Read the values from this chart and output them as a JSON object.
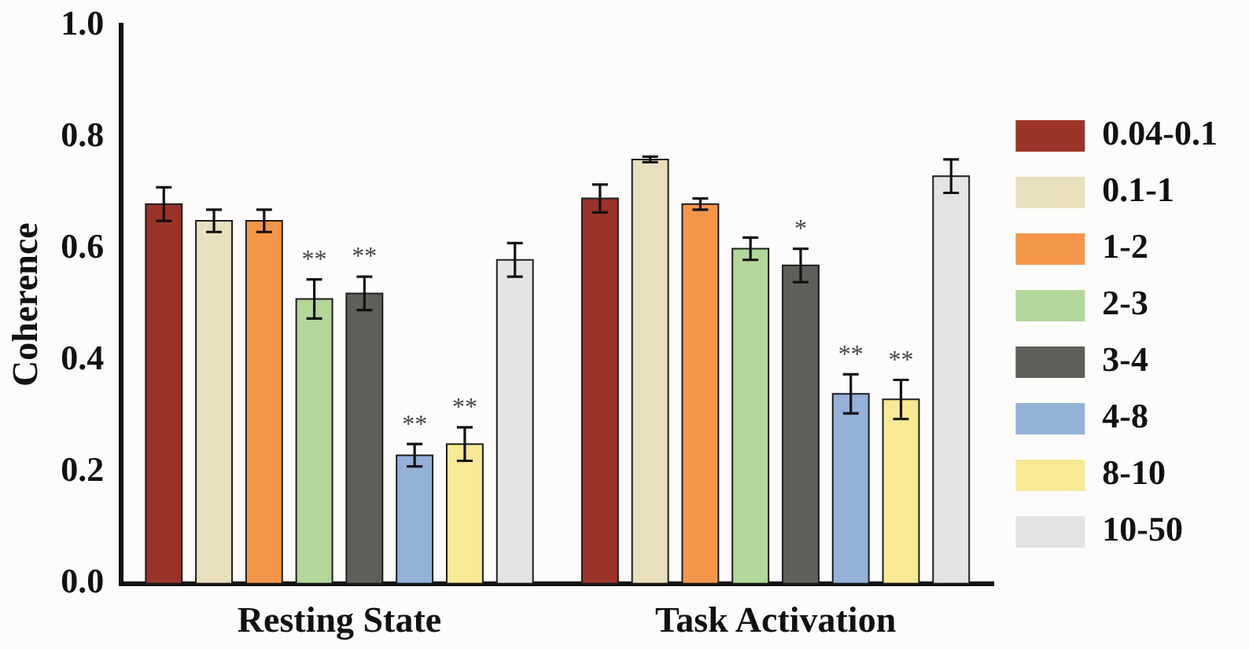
{
  "chart_data": {
    "type": "bar",
    "ylabel": "Coherence",
    "categories": [
      "Resting State",
      "Task Activation"
    ],
    "ylim": [
      0,
      1
    ],
    "yticks": [
      {
        "value": 0,
        "label": "0.0"
      },
      0.2,
      0.4,
      0.6,
      0.8,
      {
        "value": 1,
        "label": "1.0"
      }
    ],
    "grid": false,
    "legend": "right",
    "series": [
      {
        "name": "0.04-0.1",
        "color": "#9b3328",
        "values": [
          0.68,
          0.69
        ],
        "errors": [
          0.03,
          0.025
        ]
      },
      {
        "name": "0.1-1",
        "color": "#e8dfbd",
        "values": [
          0.65,
          0.76
        ],
        "errors": [
          0.02,
          0.005
        ]
      },
      {
        "name": "1-2",
        "color": "#f4964a",
        "values": [
          0.65,
          0.68
        ],
        "errors": [
          0.02,
          0.01
        ]
      },
      {
        "name": "2-3",
        "color": "#b3d69a",
        "values": [
          0.51,
          0.6
        ],
        "errors": [
          0.035,
          0.02
        ],
        "value_labels": [
          "**",
          null
        ]
      },
      {
        "name": "3-4",
        "color": "#5f5e5a",
        "values": [
          0.52,
          0.57
        ],
        "errors": [
          0.03,
          0.03
        ],
        "value_labels": [
          "**",
          "*"
        ]
      },
      {
        "name": "4-8",
        "color": "#94b2d8",
        "values": [
          0.23,
          0.34
        ],
        "errors": [
          0.02,
          0.035
        ],
        "value_labels": [
          "**",
          "**"
        ]
      },
      {
        "name": "8-10",
        "color": "#f9e894",
        "values": [
          0.25,
          0.33
        ],
        "errors": [
          0.03,
          0.035
        ],
        "value_labels": [
          "**",
          "**"
        ]
      },
      {
        "name": "10-50",
        "color": "#e5e3e1",
        "values": [
          0.58,
          0.73
        ],
        "errors": [
          0.03,
          0.03
        ]
      }
    ]
  }
}
